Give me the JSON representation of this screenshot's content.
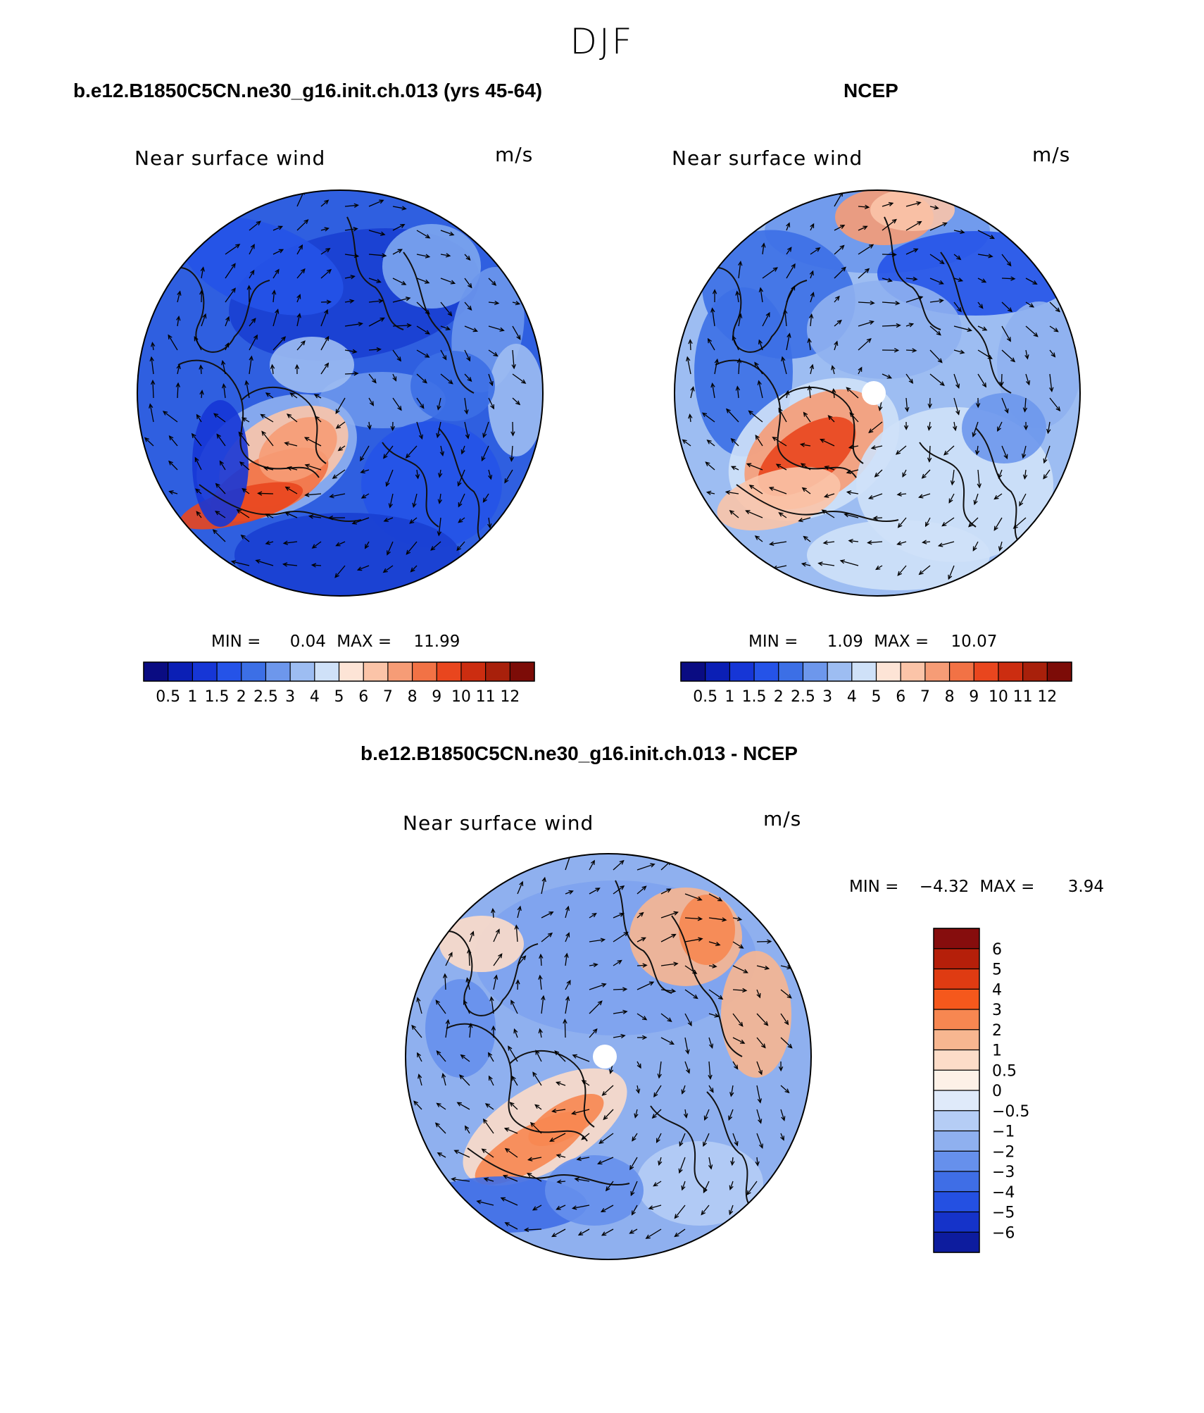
{
  "figure": {
    "title": "DJF"
  },
  "panels": [
    {
      "id": "model",
      "title": "b.e12.B1850C5CN.ne30_g16.init.ch.013 (yrs 45-64)",
      "left_label": "Near surface wind",
      "right_label": "m/s",
      "min_label": "MIN =",
      "min_value": "0.04",
      "max_label": "MAX =",
      "max_value": "11.99"
    },
    {
      "id": "ncep",
      "title": "NCEP",
      "left_label": "Near surface wind",
      "right_label": "m/s",
      "min_label": "MIN =",
      "min_value": "1.09",
      "max_label": "MAX =",
      "max_value": "10.07"
    },
    {
      "id": "diff",
      "title": "b.e12.B1850C5CN.ne30_g16.init.ch.013 - NCEP",
      "left_label": "Near surface wind",
      "right_label": "m/s",
      "min_label": "MIN =",
      "min_value": "−4.32",
      "max_label": "MAX =",
      "max_value": "3.94"
    }
  ],
  "colorbars": {
    "speed": {
      "ticks": [
        "0.5",
        "1",
        "1.5",
        "2",
        "2.5",
        "3",
        "4",
        "5",
        "6",
        "7",
        "8",
        "9",
        "10",
        "11",
        "12"
      ],
      "colors": [
        "#0a0c82",
        "#0b1fb5",
        "#1636d6",
        "#2553e8",
        "#3c6fe6",
        "#6d97ec",
        "#9dbdf2",
        "#cfe1f8",
        "#fde4d6",
        "#fbc4a8",
        "#f69c76",
        "#f27245",
        "#e9461e",
        "#cc2d10",
        "#a8200b",
        "#7c0c07"
      ]
    },
    "difference": {
      "ticks": [
        "6",
        "5",
        "4",
        "3",
        "2",
        "1",
        "0.5",
        "0",
        "−0.5",
        "−1",
        "−2",
        "−3",
        "−4",
        "−5",
        "−6"
      ],
      "colors_top_to_bottom": [
        "#860d0d",
        "#b51f0a",
        "#df3b12",
        "#f5581c",
        "#f78751",
        "#f7b690",
        "#fcdcc8",
        "#fdf1e7",
        "#dfeafa",
        "#b5cdf5",
        "#8fb0ef",
        "#6690ec",
        "#3f6ee6",
        "#2450e2",
        "#1533c9",
        "#0d1c9e"
      ]
    }
  }
}
